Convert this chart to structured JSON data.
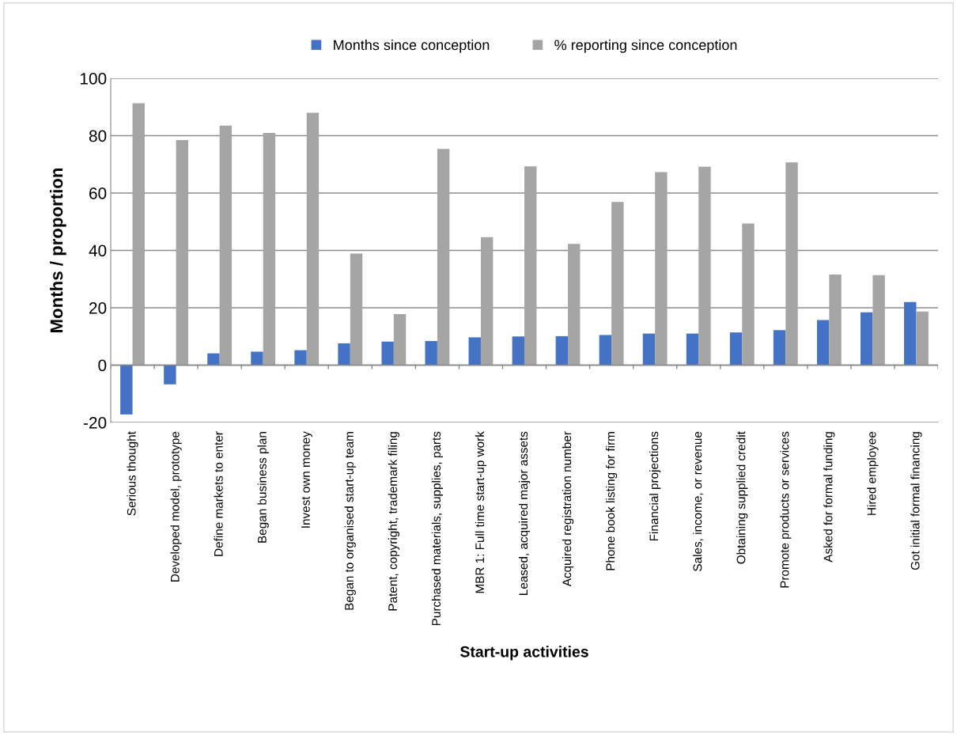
{
  "chart_data": {
    "type": "bar",
    "xlabel": "Start-up activities",
    "ylabel": "Months / proportion",
    "categories": [
      "Serious thought",
      "Developed model, prototype",
      "Define markets to enter",
      "Began business plan",
      "Invest own money",
      "Began to organised start-up team",
      "Patent, copyright, trademark filing",
      "Purchased materials, supplies, parts",
      "MBR 1: Full time start-up work",
      "Leased, acquired major assets",
      "Acquired registration number",
      "Phone book listing for firm",
      "Financial projections",
      "Sales, income, or revenue",
      "Obtaining supplied credit",
      "Promote products or services",
      "Asked for formal funding",
      "Hired employee",
      "Got initial formal financing"
    ],
    "series": [
      {
        "name": "Months since conception",
        "color": "#4472c4",
        "values": [
          -17.2,
          -6.7,
          4.1,
          4.7,
          5.2,
          7.6,
          8.2,
          8.4,
          9.7,
          10.0,
          10.1,
          10.5,
          11.0,
          11.0,
          11.4,
          12.2,
          15.7,
          18.4,
          22.0
        ]
      },
      {
        "name": "% reporting since conception",
        "color": "#a5a5a5",
        "values": [
          91.3,
          78.5,
          83.5,
          81.0,
          88.0,
          38.9,
          17.8,
          75.4,
          44.6,
          69.3,
          42.3,
          56.9,
          67.3,
          69.2,
          49.4,
          70.7,
          31.6,
          31.4,
          18.7
        ]
      }
    ],
    "ylim": [
      -20,
      100
    ],
    "yticks": [
      {
        "value": -20,
        "label": "-20"
      },
      0,
      20,
      40,
      60,
      80,
      100
    ],
    "grid": "y",
    "legend": "top"
  }
}
